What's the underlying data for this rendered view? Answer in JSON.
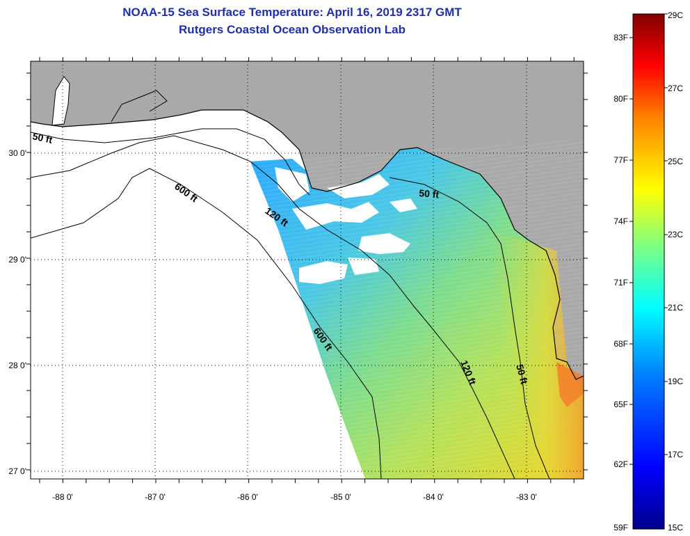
{
  "title": {
    "line1": "NOAA-15 Sea Surface Temperature:  April 16, 2019 2317 GMT",
    "line2": "Rutgers Coastal Ocean Observation Lab"
  },
  "map": {
    "lon_ticks": [
      "-88 0'",
      "-87 0'",
      "-86 0'",
      "-85 0'",
      "-84 0'",
      "-83 0'"
    ],
    "lat_ticks": [
      "30 0'",
      "29 0'",
      "28 0'",
      "27 0'"
    ],
    "contour_labels": [
      "50 ft",
      "600 ft",
      "120 ft",
      "50 ft",
      "600 ft",
      "120 ft",
      "50 ft"
    ],
    "colors": {
      "land": "#a9a9a9",
      "no_data": "#ffffff",
      "frame": "#000000"
    }
  },
  "colorbar": {
    "fahrenheit_labels": [
      "83F",
      "80F",
      "77F",
      "74F",
      "71F",
      "68F",
      "65F",
      "62F",
      "59F"
    ],
    "celsius_labels": [
      "29C",
      "27C",
      "25C",
      "23C",
      "21C",
      "19C",
      "17C",
      "15C"
    ],
    "range_c": [
      15,
      29
    ],
    "range_f": [
      59,
      84.2
    ],
    "colormap": [
      "#00008f",
      "#0000ff",
      "#0080ff",
      "#00ffff",
      "#80ff80",
      "#ffff00",
      "#ff8000",
      "#ff0000",
      "#800000"
    ]
  }
}
